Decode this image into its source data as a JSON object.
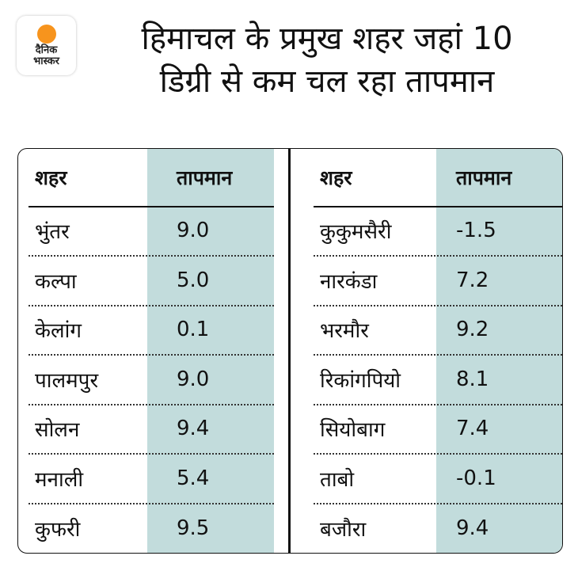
{
  "logo": {
    "line1": "दैनिक",
    "line2": "भास्कर",
    "sun_color": "#f7941d"
  },
  "title": {
    "line1": "हिमाचल के प्रमुख शहर जहां 10",
    "line2": "डिग्री से कम चल रहा तापमान"
  },
  "colors": {
    "shaded_column": "#c2dcdc"
  },
  "table": {
    "headers": {
      "city": "शहर",
      "temp": "तापमान"
    },
    "left": [
      {
        "city": "भुंतर",
        "temp": "9.0"
      },
      {
        "city": "कल्पा",
        "temp": "5.0"
      },
      {
        "city": "केलांग",
        "temp": "0.1"
      },
      {
        "city": "पालमपुर",
        "temp": "9.0"
      },
      {
        "city": "सोलन",
        "temp": "9.4"
      },
      {
        "city": "मनाली",
        "temp": "5.4"
      },
      {
        "city": "कुफरी",
        "temp": "9.5"
      }
    ],
    "right": [
      {
        "city": "कुकुमसैरी",
        "temp": "-1.5"
      },
      {
        "city": "नारकंडा",
        "temp": "7.2"
      },
      {
        "city": "भरमौर",
        "temp": "9.2"
      },
      {
        "city": "रिकांगपियो",
        "temp": "8.1"
      },
      {
        "city": "सियोबाग",
        "temp": "7.4"
      },
      {
        "city": "ताबो",
        "temp": "-0.1"
      },
      {
        "city": "बजौरा",
        "temp": "9.4"
      }
    ]
  }
}
